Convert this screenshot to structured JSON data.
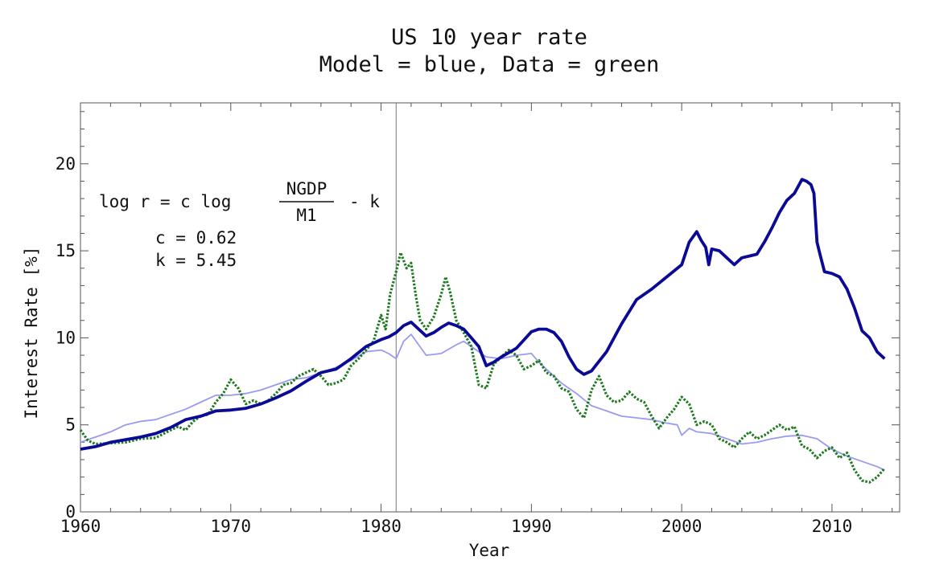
{
  "chart_data": {
    "type": "line",
    "title": "US 10 year rate",
    "subtitle": "Model = blue, Data = green",
    "xlabel": "Year",
    "ylabel": "Interest Rate [%]",
    "xlim": [
      1960,
      2014.5
    ],
    "ylim": [
      0,
      23.5
    ],
    "x_ticks": [
      1960,
      1970,
      1980,
      1990,
      2000,
      2010
    ],
    "y_ticks": [
      0,
      5,
      10,
      15,
      20
    ],
    "x_tick_labels": [
      "1960",
      "1970",
      "1980",
      "1990",
      "2000",
      "2010"
    ],
    "y_tick_labels": [
      "0",
      "5",
      "10",
      "15",
      "20"
    ],
    "grid": false,
    "vertical_line_x": 1981.0,
    "annotation": {
      "lhs": "log r = c log",
      "frac_num": "NGDP",
      "frac_den": "M1",
      "rhs": "- k",
      "c_line": "c = 0.62",
      "k_line": "k = 5.45"
    },
    "colors": {
      "model": "#0a0a96",
      "model_light": "#9a9af0",
      "data": "#1e7a1e"
    },
    "series": [
      {
        "name": "Model",
        "color": "#0a0a96",
        "style": "solid-thick",
        "x": [
          1960,
          1961,
          1962,
          1963,
          1964,
          1965,
          1966,
          1967,
          1968,
          1969,
          1970,
          1971,
          1972,
          1973,
          1974,
          1975,
          1976,
          1977,
          1978,
          1979,
          1980,
          1980.5,
          1981,
          1981.5,
          1982,
          1982.5,
          1983,
          1983.5,
          1984,
          1984.5,
          1985,
          1985.5,
          1986,
          1986.5,
          1987,
          1987.5,
          1988,
          1989,
          1990,
          1990.5,
          1991,
          1991.5,
          1992,
          1992.5,
          1993,
          1993.5,
          1994,
          1995,
          1996,
          1996.5,
          1997,
          1997.5,
          1998,
          1999,
          2000,
          2000.5,
          2001,
          2001.3,
          2001.6,
          2001.8,
          2002,
          2002.5,
          2003,
          2003.5,
          2004,
          2004.5,
          2005,
          2005.5,
          2006,
          2006.5,
          2007,
          2007.5,
          2008,
          2008.3,
          2008.6,
          2008.8,
          2009,
          2009.2,
          2009.5,
          2010,
          2010.5,
          2011,
          2011.5,
          2012,
          2012.5,
          2013,
          2013.5
        ],
        "values": [
          3.6,
          3.75,
          4.0,
          4.15,
          4.3,
          4.5,
          4.85,
          5.3,
          5.5,
          5.8,
          5.85,
          5.95,
          6.2,
          6.55,
          6.95,
          7.5,
          8.0,
          8.2,
          8.8,
          9.5,
          9.9,
          10.05,
          10.3,
          10.7,
          10.9,
          10.5,
          10.1,
          10.3,
          10.6,
          10.85,
          10.7,
          10.5,
          10.0,
          9.5,
          8.4,
          8.6,
          8.9,
          9.4,
          10.35,
          10.5,
          10.5,
          10.3,
          9.8,
          8.9,
          8.2,
          7.9,
          8.1,
          9.2,
          10.8,
          11.5,
          12.2,
          12.5,
          12.8,
          13.5,
          14.2,
          15.5,
          16.1,
          15.6,
          15.2,
          14.2,
          15.1,
          15.0,
          14.6,
          14.2,
          14.6,
          14.7,
          14.8,
          15.5,
          16.3,
          17.2,
          17.9,
          18.3,
          19.1,
          19.0,
          18.8,
          18.3,
          15.5,
          14.8,
          13.8,
          13.7,
          13.5,
          12.8,
          11.7,
          10.4,
          10.0,
          9.2,
          8.8
        ]
      },
      {
        "name": "Model (light)",
        "color": "#9a9af0",
        "style": "solid-thin",
        "x": [
          1960,
          1961,
          1962,
          1963,
          1964,
          1965,
          1966,
          1967,
          1968,
          1969,
          1970,
          1971,
          1972,
          1973,
          1974,
          1975,
          1976,
          1977,
          1978,
          1979,
          1980,
          1980.5,
          1981,
          1981.5,
          1982,
          1982.5,
          1983,
          1984,
          1985,
          1985.5,
          1986,
          1987,
          1988,
          1989,
          1990,
          1990.5,
          1991,
          1992,
          1993,
          1994,
          1995,
          1996,
          1997,
          1998,
          1999,
          1999.7,
          2000,
          2000.5,
          2001,
          2002,
          2003,
          2004,
          2005,
          2006,
          2007,
          2008,
          2009,
          2010,
          2011,
          2012,
          2013,
          2013.5
        ],
        "values": [
          4.0,
          4.3,
          4.6,
          5.0,
          5.2,
          5.3,
          5.6,
          5.9,
          6.3,
          6.7,
          6.7,
          6.8,
          7.0,
          7.3,
          7.6,
          7.7,
          8.0,
          8.3,
          8.7,
          9.2,
          9.3,
          9.1,
          8.8,
          9.8,
          10.2,
          9.6,
          9.0,
          9.1,
          9.6,
          9.8,
          9.5,
          8.9,
          8.8,
          9.0,
          9.1,
          8.6,
          8.2,
          7.4,
          6.8,
          6.1,
          5.8,
          5.5,
          5.4,
          5.3,
          5.1,
          5.0,
          4.4,
          4.8,
          4.6,
          4.5,
          4.2,
          3.9,
          4.0,
          4.2,
          4.35,
          4.4,
          4.2,
          3.6,
          3.2,
          2.9,
          2.6,
          2.4
        ]
      },
      {
        "name": "Data",
        "color": "#1e7a1e",
        "style": "dotted",
        "x": [
          1960,
          1960.5,
          1961,
          1962,
          1963,
          1964,
          1965,
          1966,
          1966.5,
          1967,
          1967.5,
          1968,
          1968.5,
          1969,
          1969.5,
          1970,
          1970.5,
          1971,
          1971.5,
          1972,
          1972.5,
          1973,
          1973.5,
          1974,
          1974.5,
          1975,
          1975.5,
          1976,
          1976.5,
          1977,
          1977.5,
          1978,
          1978.5,
          1979,
          1979.5,
          1980,
          1980.3,
          1980.6,
          1981,
          1981.3,
          1981.7,
          1982,
          1982.3,
          1982.6,
          1983,
          1983.5,
          1984,
          1984.3,
          1984.6,
          1985,
          1985.5,
          1986,
          1986.5,
          1987,
          1987.5,
          1988,
          1988.5,
          1989,
          1989.5,
          1990,
          1990.5,
          1991,
          1991.5,
          1992,
          1992.5,
          1993,
          1993.5,
          1994,
          1994.5,
          1995,
          1995.5,
          1996,
          1996.5,
          1997,
          1997.5,
          1998,
          1998.5,
          1999,
          1999.5,
          2000,
          2000.5,
          2001,
          2001.5,
          2002,
          2002.5,
          2003,
          2003.5,
          2004,
          2004.5,
          2005,
          2005.5,
          2006,
          2006.5,
          2007,
          2007.5,
          2008,
          2008.5,
          2009,
          2009.5,
          2010,
          2010.5,
          2011,
          2011.5,
          2012,
          2012.5,
          2013,
          2013.5
        ],
        "values": [
          4.7,
          4.1,
          3.9,
          3.95,
          4.0,
          4.2,
          4.25,
          4.7,
          4.9,
          4.7,
          5.2,
          5.5,
          5.6,
          6.3,
          6.8,
          7.6,
          7.1,
          6.2,
          6.4,
          6.2,
          6.4,
          6.8,
          7.3,
          7.4,
          7.8,
          8.0,
          8.2,
          7.8,
          7.3,
          7.4,
          7.6,
          8.4,
          8.8,
          9.3,
          9.8,
          11.3,
          10.5,
          12.5,
          13.8,
          14.9,
          14.0,
          14.3,
          12.5,
          11.0,
          10.5,
          11.2,
          12.5,
          13.5,
          12.6,
          11.0,
          10.3,
          9.5,
          7.3,
          7.1,
          8.5,
          8.9,
          9.3,
          9.0,
          8.2,
          8.4,
          8.7,
          8.0,
          7.8,
          7.1,
          6.9,
          5.9,
          5.4,
          7.0,
          7.8,
          6.7,
          6.3,
          6.4,
          6.9,
          6.5,
          6.3,
          5.5,
          4.8,
          5.4,
          5.9,
          6.6,
          6.2,
          5.0,
          5.2,
          5.0,
          4.2,
          4.0,
          3.7,
          4.2,
          4.6,
          4.2,
          4.4,
          4.7,
          5.0,
          4.7,
          4.9,
          3.8,
          3.6,
          3.1,
          3.5,
          3.7,
          3.1,
          3.4,
          2.4,
          1.8,
          1.7,
          2.0,
          2.5
        ]
      }
    ]
  }
}
